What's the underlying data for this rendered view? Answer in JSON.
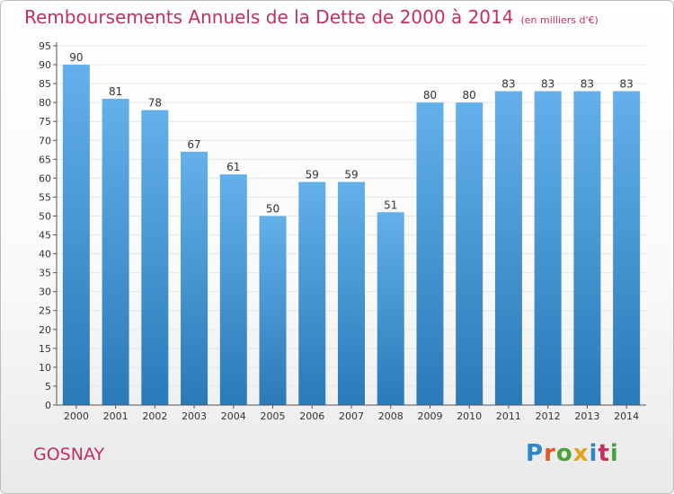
{
  "header": {
    "title": "Remboursements Annuels de la Dette de 2000 à 2014",
    "unit": "(en milliers d'€)"
  },
  "footer": {
    "commune": "GOSNAY",
    "logo_text": "Proxiti"
  },
  "colors": {
    "title": "#c2305e",
    "bar_light": "#63b0ea",
    "bar_dark": "#2a7ab8",
    "axis": "#555555",
    "grid": "#e6e6e6"
  },
  "chart_data": {
    "type": "bar",
    "title": "Remboursements Annuels de la Dette de 2000 à 2014",
    "xlabel": "",
    "ylabel": "",
    "categories": [
      "2000",
      "2001",
      "2002",
      "2003",
      "2004",
      "2005",
      "2006",
      "2007",
      "2008",
      "2009",
      "2010",
      "2011",
      "2012",
      "2013",
      "2014"
    ],
    "values": [
      90,
      81,
      78,
      67,
      61,
      50,
      59,
      59,
      51,
      80,
      80,
      83,
      83,
      83,
      83
    ],
    "ylim": [
      0,
      95
    ],
    "ytick_step": 5,
    "grid": true,
    "data_labels": true
  }
}
